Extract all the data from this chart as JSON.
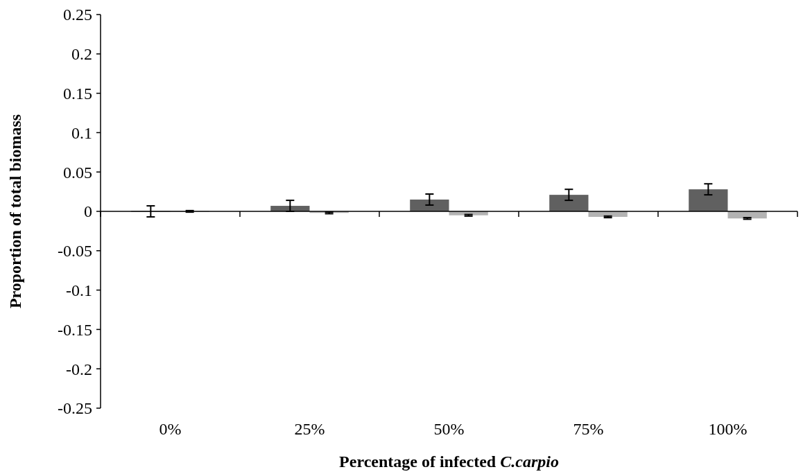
{
  "chart_data": {
    "type": "bar",
    "xlabel": "Percentage of infected C.carpio",
    "ylabel": "Proportion of total biomass",
    "categories": [
      "0%",
      "25%",
      "50%",
      "75%",
      "100%"
    ],
    "series": [
      {
        "color": "#606060",
        "values": [
          0,
          0.007,
          0.015,
          0.021,
          0.028
        ],
        "errors": [
          0.007,
          0.007,
          0.007,
          0.007,
          0.007
        ]
      },
      {
        "color": "#b3b3b3",
        "values": [
          0,
          -0.002,
          -0.005,
          -0.007,
          -0.009
        ],
        "errors": [
          0.001,
          0.001,
          0.001,
          0.001,
          0.001
        ]
      }
    ],
    "ylim": [
      -0.25,
      0.25
    ],
    "yticks": [
      -0.25,
      -0.2,
      -0.15,
      -0.1,
      -0.05,
      0,
      0.05,
      0.1,
      0.15,
      0.2,
      0.25
    ]
  }
}
